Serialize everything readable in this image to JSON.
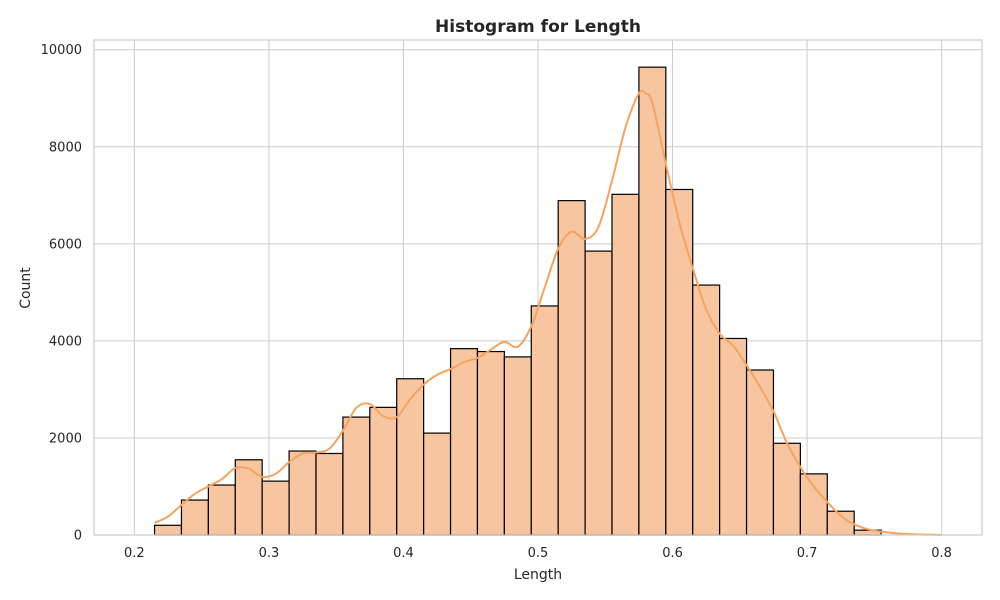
{
  "chart_data": {
    "type": "bar",
    "title": "Histogram for Length",
    "xlabel": "Length",
    "ylabel": "Count",
    "xlim": [
      0.17,
      0.83
    ],
    "ylim": [
      0,
      10200
    ],
    "xticks": [
      0.2,
      0.3,
      0.4,
      0.5,
      0.6,
      0.7,
      0.8
    ],
    "xtick_labels": [
      "0.2",
      "0.3",
      "0.4",
      "0.5",
      "0.6",
      "0.7",
      "0.8"
    ],
    "yticks": [
      0,
      2000,
      4000,
      6000,
      8000,
      10000
    ],
    "ytick_labels": [
      "0",
      "2000",
      "4000",
      "6000",
      "8000",
      "10000"
    ],
    "grid": true,
    "bins": [
      {
        "x0": 0.215,
        "x1": 0.235,
        "count": 200
      },
      {
        "x0": 0.235,
        "x1": 0.255,
        "count": 720
      },
      {
        "x0": 0.255,
        "x1": 0.275,
        "count": 1030
      },
      {
        "x0": 0.275,
        "x1": 0.295,
        "count": 1550
      },
      {
        "x0": 0.295,
        "x1": 0.315,
        "count": 1110
      },
      {
        "x0": 0.315,
        "x1": 0.335,
        "count": 1730
      },
      {
        "x0": 0.335,
        "x1": 0.355,
        "count": 1680
      },
      {
        "x0": 0.355,
        "x1": 0.375,
        "count": 2430
      },
      {
        "x0": 0.375,
        "x1": 0.395,
        "count": 2630
      },
      {
        "x0": 0.395,
        "x1": 0.415,
        "count": 3220
      },
      {
        "x0": 0.415,
        "x1": 0.435,
        "count": 2100
      },
      {
        "x0": 0.435,
        "x1": 0.455,
        "count": 3840
      },
      {
        "x0": 0.455,
        "x1": 0.475,
        "count": 3780
      },
      {
        "x0": 0.475,
        "x1": 0.495,
        "count": 3670
      },
      {
        "x0": 0.495,
        "x1": 0.515,
        "count": 4720
      },
      {
        "x0": 0.515,
        "x1": 0.535,
        "count": 6890
      },
      {
        "x0": 0.535,
        "x1": 0.555,
        "count": 5850
      },
      {
        "x0": 0.555,
        "x1": 0.575,
        "count": 7020
      },
      {
        "x0": 0.575,
        "x1": 0.595,
        "count": 9640
      },
      {
        "x0": 0.595,
        "x1": 0.615,
        "count": 7120
      },
      {
        "x0": 0.615,
        "x1": 0.635,
        "count": 5150
      },
      {
        "x0": 0.635,
        "x1": 0.655,
        "count": 4050
      },
      {
        "x0": 0.655,
        "x1": 0.675,
        "count": 3400
      },
      {
        "x0": 0.675,
        "x1": 0.695,
        "count": 1890
      },
      {
        "x0": 0.695,
        "x1": 0.715,
        "count": 1260
      },
      {
        "x0": 0.715,
        "x1": 0.735,
        "count": 490
      },
      {
        "x0": 0.735,
        "x1": 0.755,
        "count": 100
      }
    ],
    "kde": {
      "x": [
        0.215,
        0.225,
        0.235,
        0.245,
        0.255,
        0.265,
        0.275,
        0.285,
        0.295,
        0.305,
        0.315,
        0.325,
        0.335,
        0.345,
        0.355,
        0.365,
        0.375,
        0.385,
        0.395,
        0.405,
        0.415,
        0.425,
        0.435,
        0.445,
        0.455,
        0.465,
        0.475,
        0.485,
        0.495,
        0.505,
        0.515,
        0.525,
        0.535,
        0.545,
        0.555,
        0.565,
        0.575,
        0.58,
        0.585,
        0.595,
        0.605,
        0.615,
        0.625,
        0.635,
        0.645,
        0.655,
        0.665,
        0.675,
        0.685,
        0.695,
        0.705,
        0.715,
        0.725,
        0.735,
        0.745,
        0.755,
        0.765,
        0.775,
        0.785,
        0.795,
        0.8
      ],
      "y": [
        250,
        380,
        620,
        850,
        1000,
        1150,
        1380,
        1370,
        1200,
        1260,
        1500,
        1680,
        1700,
        1780,
        2150,
        2620,
        2700,
        2450,
        2430,
        2800,
        3100,
        3300,
        3420,
        3560,
        3650,
        3820,
        3980,
        3880,
        4300,
        5100,
        5900,
        6250,
        6100,
        6350,
        7300,
        8400,
        9100,
        9100,
        8900,
        7650,
        6450,
        5500,
        4650,
        4150,
        3900,
        3500,
        3050,
        2550,
        1900,
        1400,
        1000,
        680,
        400,
        220,
        120,
        70,
        40,
        20,
        10,
        5,
        0
      ],
      "color": "#f4a460"
    },
    "bar_fill": "#f7c59f",
    "bar_edge": "#000000"
  }
}
